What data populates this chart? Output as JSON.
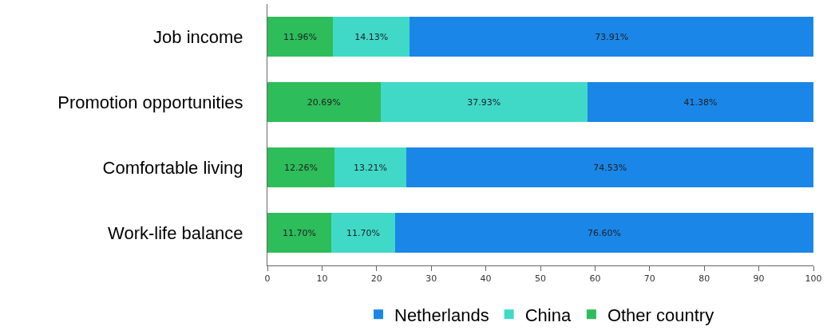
{
  "chart_data": {
    "type": "bar",
    "orientation": "horizontal",
    "stacked": true,
    "categories": [
      "Job income",
      "Promotion opportunities",
      "Comfortable living",
      "Work-life balance"
    ],
    "series": [
      {
        "name": "Other country",
        "color": "#2dbd5a",
        "values": [
          11.96,
          20.69,
          12.26,
          11.7
        ],
        "value_labels": [
          "11.96%",
          "20.69%",
          "12.26%",
          "11.70%"
        ]
      },
      {
        "name": "China",
        "color": "#40d9c8",
        "values": [
          14.13,
          37.93,
          13.21,
          11.7
        ],
        "value_labels": [
          "14.13%",
          "37.93%",
          "13.21%",
          "11.70%"
        ]
      },
      {
        "name": "Netherlands",
        "color": "#1a86e8",
        "values": [
          73.91,
          41.38,
          74.53,
          76.6
        ],
        "value_labels": [
          "73.91%",
          "41.38%",
          "74.53%",
          "76.60%"
        ]
      }
    ],
    "xlim": [
      0,
      100
    ],
    "xticks": [
      0,
      10,
      20,
      30,
      40,
      50,
      60,
      70,
      80,
      90,
      100
    ],
    "legend": "bottom"
  }
}
